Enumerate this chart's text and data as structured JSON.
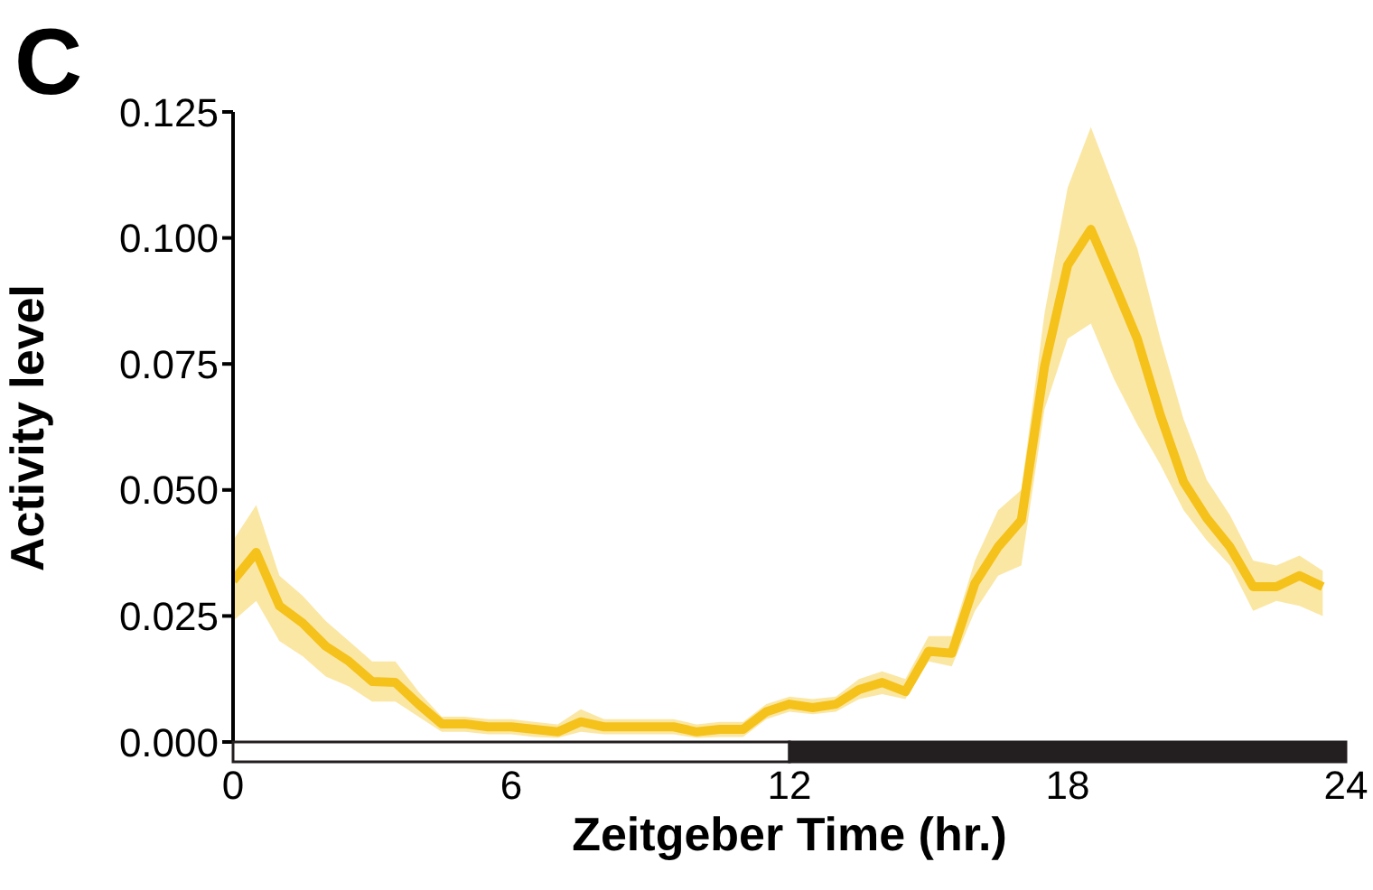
{
  "chart_data": {
    "type": "line",
    "xlabel": "Zeitgeber Time (hr.)",
    "ylabel": "Activity level",
    "annotations": [
      "C"
    ],
    "x": [
      0,
      0.5,
      1,
      1.5,
      2,
      2.5,
      3,
      3.5,
      4,
      4.5,
      5,
      5.5,
      6,
      6.5,
      7,
      7.5,
      8,
      8.5,
      9,
      9.5,
      10,
      10.5,
      11,
      11.5,
      12,
      12.5,
      13,
      13.5,
      14,
      14.5,
      15,
      15.5,
      16,
      16.5,
      17,
      17.5,
      18,
      18.5,
      19,
      19.5,
      20,
      20.5,
      21,
      21.5,
      22,
      22.5,
      23,
      23.5
    ],
    "series": [
      {
        "color": "#f5c21b",
        "values": [
          0.032,
          0.0376,
          0.027,
          0.0236,
          0.019,
          0.016,
          0.012,
          0.0118,
          0.0075,
          0.0036,
          0.0036,
          0.003,
          0.003,
          0.0025,
          0.002,
          0.004,
          0.003,
          0.003,
          0.003,
          0.003,
          0.002,
          0.0025,
          0.0025,
          0.006,
          0.0075,
          0.0068,
          0.0075,
          0.0104,
          0.0118,
          0.01,
          0.018,
          0.0176,
          0.0315,
          0.0387,
          0.044,
          0.0745,
          0.0946,
          0.1017,
          0.091,
          0.08,
          0.0648,
          0.0516,
          0.0444,
          0.0387,
          0.0308,
          0.0308,
          0.033,
          0.0308
        ],
        "lower": [
          0.024,
          0.028,
          0.02,
          0.017,
          0.013,
          0.011,
          0.008,
          0.008,
          0.005,
          0.002,
          0.002,
          0.0015,
          0.0015,
          0.001,
          0.0008,
          0.002,
          0.0015,
          0.0015,
          0.0015,
          0.0015,
          0.0008,
          0.001,
          0.001,
          0.0045,
          0.006,
          0.0055,
          0.006,
          0.0085,
          0.0095,
          0.0085,
          0.016,
          0.015,
          0.026,
          0.033,
          0.035,
          0.066,
          0.08,
          0.083,
          0.072,
          0.063,
          0.055,
          0.046,
          0.04,
          0.035,
          0.026,
          0.028,
          0.027,
          0.025
        ],
        "upper": [
          0.04,
          0.047,
          0.033,
          0.029,
          0.024,
          0.02,
          0.016,
          0.016,
          0.01,
          0.005,
          0.005,
          0.0045,
          0.0045,
          0.004,
          0.0035,
          0.0065,
          0.0045,
          0.0045,
          0.0045,
          0.0045,
          0.0035,
          0.004,
          0.004,
          0.0075,
          0.009,
          0.0085,
          0.009,
          0.0125,
          0.014,
          0.0125,
          0.021,
          0.021,
          0.036,
          0.046,
          0.05,
          0.085,
          0.11,
          0.122,
          0.11,
          0.098,
          0.08,
          0.064,
          0.052,
          0.045,
          0.036,
          0.035,
          0.037,
          0.034
        ]
      }
    ],
    "xlim": [
      0,
      24
    ],
    "xticks": [
      0,
      6,
      12,
      18,
      24
    ],
    "ylim": [
      0,
      0.125
    ],
    "yticks": [
      {
        "value": 0,
        "label": "0.000"
      },
      {
        "value": 0.025,
        "label": "0.025"
      },
      {
        "value": 0.05,
        "label": "0.050"
      },
      {
        "value": 0.075,
        "label": "0.075"
      },
      {
        "value": 0.1,
        "label": "0.100"
      },
      {
        "value": 0.125,
        "label": "0.125"
      }
    ],
    "grid": false,
    "legend": false
  }
}
